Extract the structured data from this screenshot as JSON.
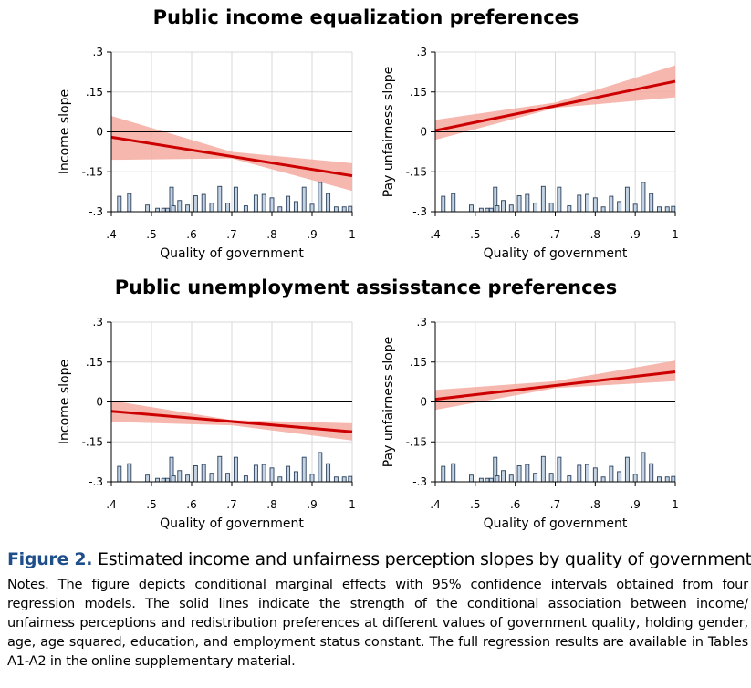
{
  "sections": [
    {
      "title": "Public income equalization preferences"
    },
    {
      "title": "Public unemployment assisstance preferences"
    }
  ],
  "caption": {
    "label": "Figure 2.",
    "title": "Estimated income and unfairness perception slopes by quality of government.",
    "notes": "Notes. The figure depicts conditional marginal effects with 95% confidence intervals obtained from four regression models. The solid lines indicate the strength of the conditional association between income/ unfairness perceptions and redistribution preferences at different values of government quality, holding gender, age, age squared, education, and employment status constant. The full regression results are available in Tables A1-A2 in the online supplementary material."
  },
  "colors": {
    "line": "#cc0000",
    "band": "#f4aaa0",
    "hist_fill": "#c3d3e3",
    "hist_stroke": "#2a3f5c",
    "grid": "#d8d8d8"
  },
  "chart_data": [
    {
      "type": "line",
      "section": "Public income equalization preferences",
      "xlabel": "Quality of government",
      "ylabel": "Income slope",
      "xlim": [
        0.4,
        1.0
      ],
      "ylim": [
        -0.3,
        0.3
      ],
      "xticks": [
        ".4",
        ".5",
        ".6",
        ".7",
        ".8",
        ".9",
        "1"
      ],
      "yticks": [
        ".3",
        ".15",
        "0",
        "-.15",
        "-.3"
      ],
      "grid": true,
      "x": [
        0.4,
        1.0
      ],
      "y": [
        -0.02,
        -0.165
      ],
      "ci_lower": [
        [
          0.4,
          -0.105
        ],
        [
          0.7,
          -0.1
        ],
        [
          1.0,
          -0.222
        ]
      ],
      "ci_upper": [
        [
          0.4,
          0.06
        ],
        [
          0.7,
          -0.075
        ],
        [
          1.0,
          -0.118
        ]
      ],
      "histogram": {
        "x": [
          0.42,
          0.445,
          0.49,
          0.515,
          0.53,
          0.54,
          0.55,
          0.555,
          0.57,
          0.59,
          0.61,
          0.63,
          0.65,
          0.67,
          0.69,
          0.71,
          0.735,
          0.76,
          0.78,
          0.8,
          0.82,
          0.84,
          0.86,
          0.88,
          0.9,
          0.92,
          0.94,
          0.96,
          0.98,
          0.995
        ],
        "height": [
          0.058,
          0.068,
          0.025,
          0.013,
          0.013,
          0.013,
          0.092,
          0.022,
          0.042,
          0.025,
          0.06,
          0.065,
          0.032,
          0.095,
          0.032,
          0.092,
          0.022,
          0.062,
          0.065,
          0.052,
          0.018,
          0.058,
          0.038,
          0.092,
          0.028,
          0.11,
          0.068,
          0.018,
          0.018,
          0.02
        ]
      }
    },
    {
      "type": "line",
      "section": "Public income equalization preferences",
      "xlabel": "Quality of government",
      "ylabel": "Pay unfairness slope",
      "xlim": [
        0.4,
        1.0
      ],
      "ylim": [
        -0.3,
        0.3
      ],
      "xticks": [
        ".4",
        ".5",
        ".6",
        ".7",
        ".8",
        ".9",
        "1"
      ],
      "yticks": [
        ".3",
        ".15",
        "0",
        "-.15",
        "-.3"
      ],
      "grid": true,
      "x": [
        0.4,
        1.0
      ],
      "y": [
        0.005,
        0.19
      ],
      "ci_lower": [
        [
          0.4,
          -0.03
        ],
        [
          0.7,
          0.09
        ],
        [
          1.0,
          0.13
        ]
      ],
      "ci_upper": [
        [
          0.4,
          0.045
        ],
        [
          0.7,
          0.11
        ],
        [
          1.0,
          0.25
        ]
      ],
      "histogram": {
        "x": [
          0.42,
          0.445,
          0.49,
          0.515,
          0.53,
          0.54,
          0.55,
          0.555,
          0.57,
          0.59,
          0.61,
          0.63,
          0.65,
          0.67,
          0.69,
          0.71,
          0.735,
          0.76,
          0.78,
          0.8,
          0.82,
          0.84,
          0.86,
          0.88,
          0.9,
          0.92,
          0.94,
          0.96,
          0.98,
          0.995
        ],
        "height": [
          0.058,
          0.068,
          0.025,
          0.013,
          0.013,
          0.013,
          0.092,
          0.022,
          0.042,
          0.025,
          0.06,
          0.065,
          0.032,
          0.095,
          0.032,
          0.092,
          0.022,
          0.062,
          0.065,
          0.052,
          0.018,
          0.058,
          0.038,
          0.092,
          0.028,
          0.11,
          0.068,
          0.018,
          0.018,
          0.02
        ]
      }
    },
    {
      "type": "line",
      "section": "Public unemployment assisstance preferences",
      "xlabel": "Quality of government",
      "ylabel": "Income slope",
      "xlim": [
        0.4,
        1.0
      ],
      "ylim": [
        -0.3,
        0.3
      ],
      "xticks": [
        ".4",
        ".5",
        ".6",
        ".7",
        ".8",
        ".9",
        "1"
      ],
      "yticks": [
        ".3",
        ".15",
        "0",
        "-.15",
        "-.3"
      ],
      "grid": true,
      "x": [
        0.4,
        1.0
      ],
      "y": [
        -0.035,
        -0.112
      ],
      "ci_lower": [
        [
          0.4,
          -0.075
        ],
        [
          0.7,
          -0.088
        ],
        [
          1.0,
          -0.145
        ]
      ],
      "ci_upper": [
        [
          0.4,
          0.005
        ],
        [
          0.7,
          -0.068
        ],
        [
          1.0,
          -0.08
        ]
      ],
      "histogram": {
        "x": [
          0.42,
          0.445,
          0.49,
          0.515,
          0.53,
          0.54,
          0.55,
          0.555,
          0.57,
          0.59,
          0.61,
          0.63,
          0.65,
          0.67,
          0.69,
          0.71,
          0.735,
          0.76,
          0.78,
          0.8,
          0.82,
          0.84,
          0.86,
          0.88,
          0.9,
          0.92,
          0.94,
          0.96,
          0.98,
          0.995
        ],
        "height": [
          0.058,
          0.068,
          0.025,
          0.013,
          0.013,
          0.013,
          0.092,
          0.022,
          0.042,
          0.025,
          0.06,
          0.065,
          0.032,
          0.095,
          0.032,
          0.092,
          0.022,
          0.062,
          0.065,
          0.052,
          0.018,
          0.058,
          0.038,
          0.092,
          0.028,
          0.11,
          0.068,
          0.018,
          0.018,
          0.02
        ]
      }
    },
    {
      "type": "line",
      "section": "Public unemployment assisstance preferences",
      "xlabel": "Quality of government",
      "ylabel": "Pay unfairness slope",
      "xlim": [
        0.4,
        1.0
      ],
      "ylim": [
        -0.3,
        0.3
      ],
      "xticks": [
        ".4",
        ".5",
        ".6",
        ".7",
        ".8",
        ".9",
        "1"
      ],
      "yticks": [
        ".3",
        ".15",
        "0",
        "-.15",
        "-.3"
      ],
      "grid": true,
      "x": [
        0.4,
        1.0
      ],
      "y": [
        0.01,
        0.113
      ],
      "ci_lower": [
        [
          0.4,
          -0.03
        ],
        [
          0.7,
          0.052
        ],
        [
          1.0,
          0.078
        ]
      ],
      "ci_upper": [
        [
          0.4,
          0.045
        ],
        [
          0.7,
          0.078
        ],
        [
          1.0,
          0.155
        ]
      ],
      "histogram": {
        "x": [
          0.42,
          0.445,
          0.49,
          0.515,
          0.53,
          0.54,
          0.55,
          0.555,
          0.57,
          0.59,
          0.61,
          0.63,
          0.65,
          0.67,
          0.69,
          0.71,
          0.735,
          0.76,
          0.78,
          0.8,
          0.82,
          0.84,
          0.86,
          0.88,
          0.9,
          0.92,
          0.94,
          0.96,
          0.98,
          0.995
        ],
        "height": [
          0.058,
          0.068,
          0.025,
          0.013,
          0.013,
          0.013,
          0.092,
          0.022,
          0.042,
          0.025,
          0.06,
          0.065,
          0.032,
          0.095,
          0.032,
          0.092,
          0.022,
          0.062,
          0.065,
          0.052,
          0.018,
          0.058,
          0.038,
          0.092,
          0.028,
          0.11,
          0.068,
          0.018,
          0.018,
          0.02
        ]
      }
    }
  ]
}
